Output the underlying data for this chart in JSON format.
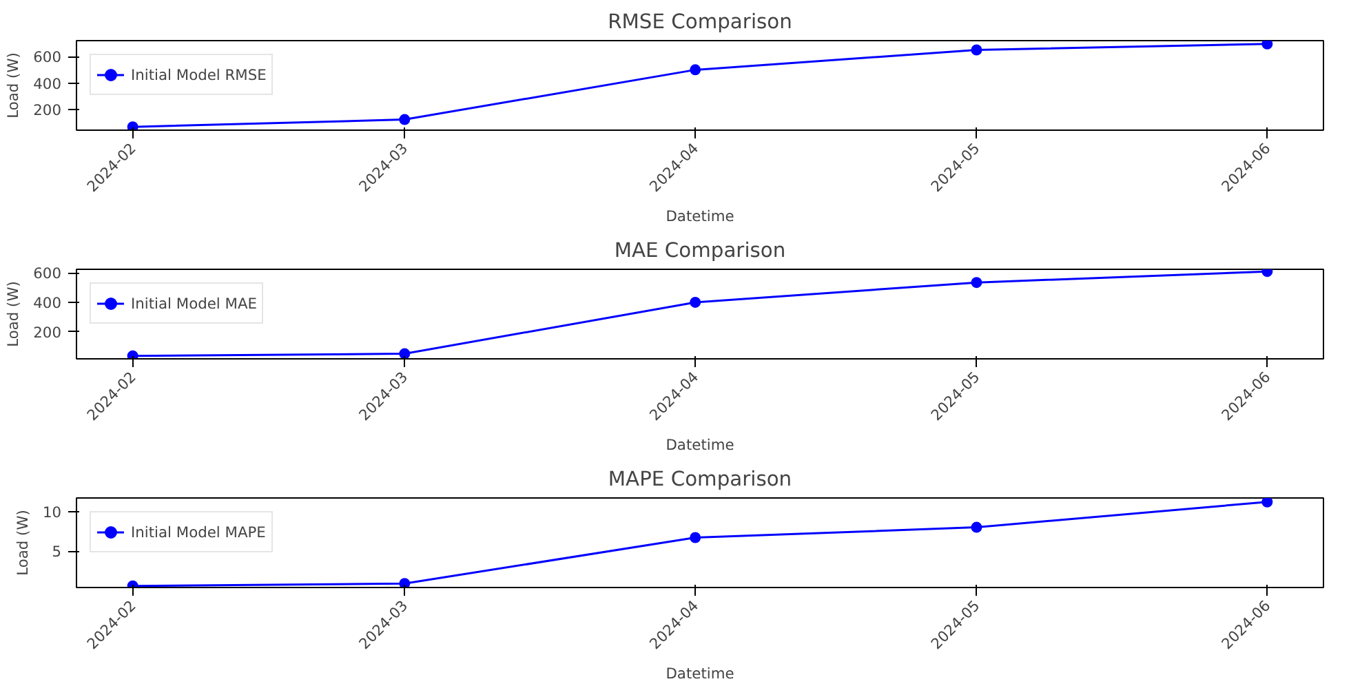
{
  "chart_data": [
    {
      "type": "line",
      "title": "RMSE Comparison",
      "xlabel": "Datetime",
      "ylabel": "Load (W)",
      "x": [
        "2024-02",
        "2024-03",
        "2024-04",
        "2024-05",
        "2024-06"
      ],
      "series": [
        {
          "name": "Initial Model RMSE",
          "color": "#0000ff",
          "values": [
            70,
            125,
            500,
            650,
            695
          ]
        }
      ],
      "xlim": [
        "2024-01-26",
        "2024-06-07"
      ],
      "xticks": [
        "2024-02",
        "2024-03",
        "2024-04",
        "2024-05",
        "2024-06"
      ],
      "ylim": [
        45,
        720
      ],
      "yticks": [
        200,
        400,
        600
      ],
      "legend": "top left",
      "marker": "circle",
      "grid": false
    },
    {
      "type": "line",
      "title": "MAE Comparison",
      "xlabel": "Datetime",
      "ylabel": "Load (W)",
      "x": [
        "2024-02",
        "2024-03",
        "2024-04",
        "2024-05",
        "2024-06"
      ],
      "series": [
        {
          "name": "Initial Model MAE",
          "color": "#0000ff",
          "values": [
            35,
            50,
            400,
            535,
            610
          ]
        }
      ],
      "xlim": [
        "2024-01-26",
        "2024-06-07"
      ],
      "xticks": [
        "2024-02",
        "2024-03",
        "2024-04",
        "2024-05",
        "2024-06"
      ],
      "ylim": [
        15,
        625
      ],
      "yticks": [
        200,
        400,
        600
      ],
      "legend": "top left",
      "marker": "circle",
      "grid": false
    },
    {
      "type": "line",
      "title": "MAPE Comparison",
      "xlabel": "Datetime",
      "ylabel": "Load (W)",
      "x": [
        "2024-02",
        "2024-03",
        "2024-04",
        "2024-05",
        "2024-06"
      ],
      "series": [
        {
          "name": "Initial Model MAPE",
          "color": "#0000ff",
          "values": [
            0.6,
            0.9,
            6.7,
            8.0,
            11.2
          ]
        }
      ],
      "xlim": [
        "2024-01-26",
        "2024-06-07"
      ],
      "xticks": [
        "2024-02",
        "2024-03",
        "2024-04",
        "2024-05",
        "2024-06"
      ],
      "ylim": [
        0.4,
        11.7
      ],
      "yticks": [
        5,
        10
      ],
      "legend": "top left",
      "marker": "circle",
      "grid": false
    }
  ]
}
